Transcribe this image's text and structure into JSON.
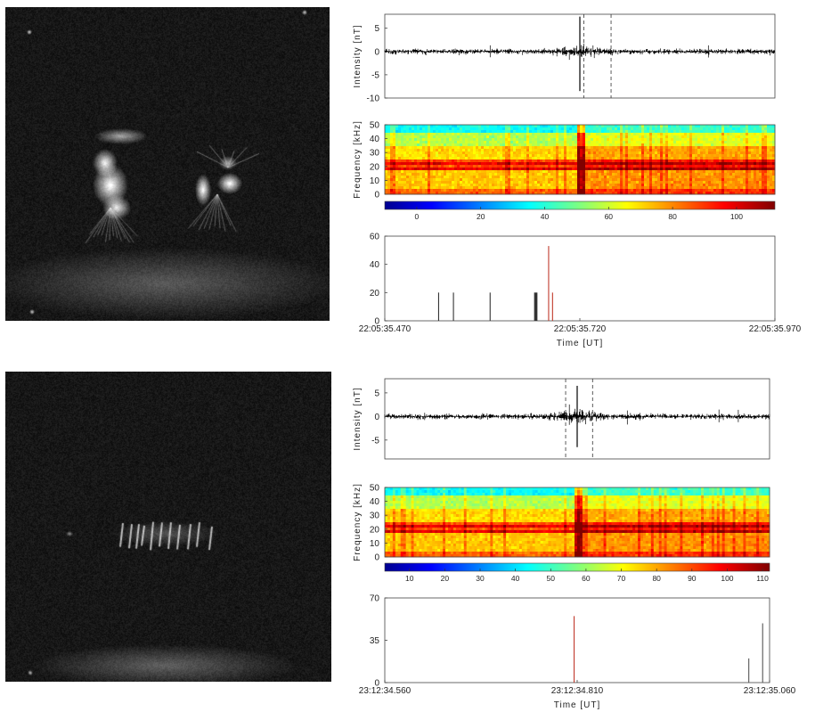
{
  "chart_data": [
    {
      "panel": "top",
      "type": "line",
      "role": "waveform",
      "ylabel": "Intensity [nT]",
      "yticks": [
        5,
        0,
        -5,
        -10
      ],
      "ylim": [
        -10,
        8
      ],
      "trigger_spike": {
        "x": "22:05:35.720",
        "up": 7.5,
        "down": -8.5
      },
      "dashed_markers_x": [
        "22:05:35.725",
        "22:05:35.760"
      ]
    },
    {
      "panel": "top",
      "type": "heatmap",
      "role": "spectrogram",
      "ylabel": "Frequency [kHz]",
      "yticks": [
        50,
        40,
        30,
        20,
        10,
        0
      ],
      "ylim": [
        0,
        50
      ],
      "colorbar_ticks": [
        "0",
        "20",
        "40",
        "60",
        "80",
        "100"
      ],
      "colorbar_range": [
        -10,
        112
      ],
      "event_column_x": "22:05:35.720"
    },
    {
      "panel": "top",
      "type": "bar",
      "role": "event histogram",
      "xlabel": "Time [UT]",
      "x_tick_labels": [
        "22:05:35.470",
        "22:05:35.720",
        "22:05:35.970"
      ],
      "xlim_ms": [
        0,
        500
      ],
      "yticks": [
        60,
        40,
        20,
        0
      ],
      "ylim": [
        0,
        60
      ],
      "bars": [
        {
          "t_ms": 69,
          "value": 20,
          "color": "#333333"
        },
        {
          "t_ms": 88,
          "value": 20,
          "color": "#333333"
        },
        {
          "t_ms": 135,
          "value": 20,
          "color": "#333333"
        },
        {
          "t_ms": 192,
          "value": 20,
          "color": "#333333"
        },
        {
          "t_ms": 193,
          "value": 20,
          "color": "#333333"
        },
        {
          "t_ms": 194,
          "value": 20,
          "color": "#333333"
        },
        {
          "t_ms": 195,
          "value": 20,
          "color": "#333333"
        },
        {
          "t_ms": 210,
          "value": 53,
          "color": "#c0392b"
        },
        {
          "t_ms": 215,
          "value": 20,
          "color": "#c0392b"
        }
      ]
    },
    {
      "panel": "bottom",
      "type": "line",
      "role": "waveform",
      "ylabel": "Intensity [nT]",
      "yticks": [
        5,
        0,
        -5
      ],
      "ylim": [
        -9,
        8
      ],
      "trigger_spike": {
        "x": "23:12:34.810",
        "up": 6.5,
        "down": -6.5
      },
      "dashed_markers_x": [
        "23:12:34.795",
        "23:12:34.830"
      ]
    },
    {
      "panel": "bottom",
      "type": "heatmap",
      "role": "spectrogram",
      "ylabel": "Frequency [kHz]",
      "yticks": [
        50,
        40,
        30,
        20,
        10,
        0
      ],
      "ylim": [
        0,
        50
      ],
      "colorbar_ticks": [
        "10",
        "20",
        "30",
        "40",
        "50",
        "60",
        "70",
        "80",
        "90",
        "100",
        "110"
      ],
      "colorbar_range": [
        3,
        112
      ],
      "event_column_x": "23:12:34.810"
    },
    {
      "panel": "bottom",
      "type": "bar",
      "role": "event histogram",
      "xlabel": "Time [UT]",
      "x_tick_labels": [
        "23:12:34.560",
        "23:12:34.810",
        "23:12:35.060"
      ],
      "xlim_ms": [
        0,
        500
      ],
      "y_tick_labels": [
        "70",
        "35",
        "0"
      ],
      "ylim": [
        0,
        70
      ],
      "bars": [
        {
          "t_ms": 246,
          "value": 55,
          "color": "#c0392b"
        },
        {
          "t_ms": 473,
          "value": 20,
          "color": "#555555"
        },
        {
          "t_ms": 491,
          "value": 49,
          "color": "#555555"
        }
      ]
    }
  ]
}
